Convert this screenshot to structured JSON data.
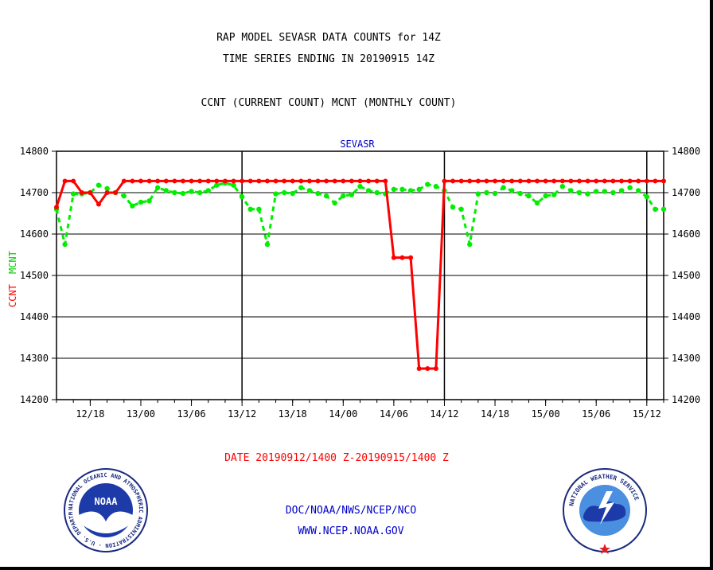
{
  "header": {
    "title_line1": "RAP MODEL SEVASR DATA COUNTS for 14Z",
    "title_line2": "TIME SERIES ENDING IN 20190915 14Z",
    "subtitle": "CCNT (CURRENT COUNT) MCNT (MONTHLY COUNT)"
  },
  "footer": {
    "date_range": "DATE 20190912/1400 Z-20190915/1400 Z",
    "org_line": "DOC/NOAA/NWS/NCEP/NCO",
    "url_line": "WWW.NCEP.NOAA.GOV"
  },
  "logos": {
    "noaa_center_text": "NOAA",
    "noaa_ring_text": "NATIONAL OCEANIC AND ATMOSPHERIC ADMINISTRATION · U.S. DEPARTMENT OF COMMERCE ·",
    "nws_ring_text": "NATIONAL WEATHER SERVICE"
  },
  "colors": {
    "ccnt": "#ff0000",
    "mcnt": "#00ee00",
    "title": "#000000",
    "date_text": "#ff0000",
    "link_text": "#0000cc",
    "panel_label": "#0000cc"
  },
  "chart_data": {
    "type": "line",
    "title": "SEVASR",
    "ylabel_ccnt": "CCNT",
    "ylabel_mcnt": "MCNT",
    "ylim": [
      14200,
      14800
    ],
    "yticks": [
      14200,
      14300,
      14400,
      14500,
      14600,
      14700,
      14800
    ],
    "xlim": [
      0,
      72
    ],
    "xticks": [
      {
        "x": 4,
        "label": "12/18"
      },
      {
        "x": 10,
        "label": "13/00"
      },
      {
        "x": 16,
        "label": "13/06"
      },
      {
        "x": 22,
        "label": "13/12"
      },
      {
        "x": 28,
        "label": "13/18"
      },
      {
        "x": 34,
        "label": "14/00"
      },
      {
        "x": 40,
        "label": "14/06"
      },
      {
        "x": 46,
        "label": "14/12"
      },
      {
        "x": 52,
        "label": "14/18"
      },
      {
        "x": 58,
        "label": "15/00"
      },
      {
        "x": 64,
        "label": "15/06"
      },
      {
        "x": 70,
        "label": "15/12"
      }
    ],
    "day_boundaries": [
      22,
      46,
      70
    ],
    "grid": true,
    "series": [
      {
        "name": "CCNT",
        "x": [
          0,
          1,
          2,
          3,
          4,
          5,
          6,
          7,
          8,
          9,
          10,
          11,
          12,
          13,
          14,
          15,
          16,
          17,
          18,
          19,
          20,
          21,
          22,
          23,
          24,
          25,
          26,
          27,
          28,
          29,
          30,
          31,
          32,
          33,
          34,
          35,
          36,
          37,
          38,
          39,
          40,
          41,
          42,
          43,
          44,
          45,
          46,
          47,
          48,
          49,
          50,
          51,
          52,
          53,
          54,
          55,
          56,
          57,
          58,
          59,
          60,
          61,
          62,
          63,
          64,
          65,
          66,
          67,
          68,
          69,
          70,
          71,
          72
        ],
        "values": [
          14665,
          14728,
          14728,
          14700,
          14700,
          14672,
          14700,
          14700,
          14728,
          14728,
          14728,
          14728,
          14728,
          14728,
          14728,
          14728,
          14728,
          14728,
          14728,
          14728,
          14728,
          14728,
          14728,
          14728,
          14728,
          14728,
          14728,
          14728,
          14728,
          14728,
          14728,
          14728,
          14728,
          14728,
          14728,
          14728,
          14728,
          14728,
          14728,
          14728,
          14543,
          14543,
          14543,
          14275,
          14275,
          14275,
          14728,
          14728,
          14728,
          14728,
          14728,
          14728,
          14728,
          14728,
          14728,
          14728,
          14728,
          14728,
          14728,
          14728,
          14728,
          14728,
          14728,
          14728,
          14728,
          14728,
          14728,
          14728,
          14728,
          14728,
          14728,
          14728,
          14728
        ]
      },
      {
        "name": "MCNT",
        "x": [
          0,
          1,
          2,
          3,
          4,
          5,
          6,
          7,
          8,
          9,
          10,
          11,
          12,
          13,
          14,
          15,
          16,
          17,
          18,
          19,
          20,
          21,
          22,
          23,
          24,
          25,
          26,
          27,
          28,
          29,
          30,
          31,
          32,
          33,
          34,
          35,
          36,
          37,
          38,
          39,
          40,
          41,
          42,
          43,
          44,
          45,
          46,
          47,
          48,
          49,
          50,
          51,
          52,
          53,
          54,
          55,
          56,
          57,
          58,
          59,
          60,
          61,
          62,
          63,
          64,
          65,
          66,
          67,
          68,
          69,
          70,
          71,
          72
        ],
        "values": [
          14660,
          14575,
          14697,
          14697,
          14700,
          14718,
          14710,
          14700,
          14692,
          14668,
          14677,
          14680,
          14712,
          14705,
          14700,
          14698,
          14703,
          14700,
          14705,
          14718,
          14723,
          14718,
          14690,
          14660,
          14660,
          14575,
          14697,
          14700,
          14698,
          14712,
          14705,
          14698,
          14692,
          14675,
          14692,
          14695,
          14715,
          14705,
          14700,
          14697,
          14708,
          14708,
          14705,
          14708,
          14720,
          14715,
          14705,
          14665,
          14660,
          14575,
          14697,
          14700,
          14698,
          14712,
          14705,
          14698,
          14692,
          14675,
          14692,
          14695,
          14715,
          14705,
          14700,
          14697,
          14703,
          14703,
          14700,
          14705,
          14712,
          14705,
          14690,
          14660,
          14660
        ]
      }
    ]
  }
}
